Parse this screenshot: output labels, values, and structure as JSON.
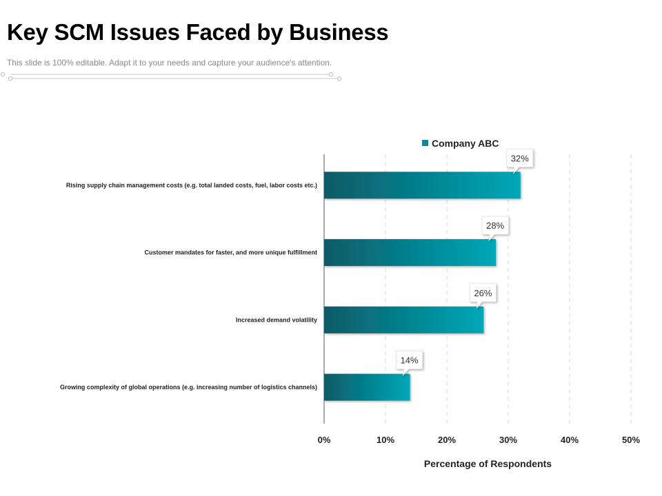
{
  "slide": {
    "title": "Key SCM Issues Faced by Business",
    "subtitle": "This slide is 100% editable. Adapt it to your needs and capture your audience's attention."
  },
  "colors": {
    "bar_dark": "#0a5a66",
    "bar_light": "#00a8b8",
    "legend": "#0a8a99"
  },
  "chart_data": {
    "type": "bar",
    "orientation": "horizontal",
    "categories": [
      "Rising supply chain management costs (e.g. total landed costs, fuel, labor costs etc.)",
      "Customer mandates for faster, and more unique fulfillment",
      "Increased demand volatility",
      "Growing complexity of global operations (e.g. increasing number of logistics channels)"
    ],
    "series": [
      {
        "name": "Company ABC",
        "values": [
          32,
          28,
          26,
          14
        ]
      }
    ],
    "data_labels": [
      "32%",
      "28%",
      "26%",
      "14%"
    ],
    "xlim": [
      0,
      50
    ],
    "xticks": [
      0,
      10,
      20,
      30,
      40,
      50
    ],
    "xtick_labels": [
      "0%",
      "10%",
      "20%",
      "30%",
      "40%",
      "50%"
    ],
    "xlabel": "Percentage of Respondents",
    "grid": "vertical dashed",
    "legend_position": "top"
  }
}
